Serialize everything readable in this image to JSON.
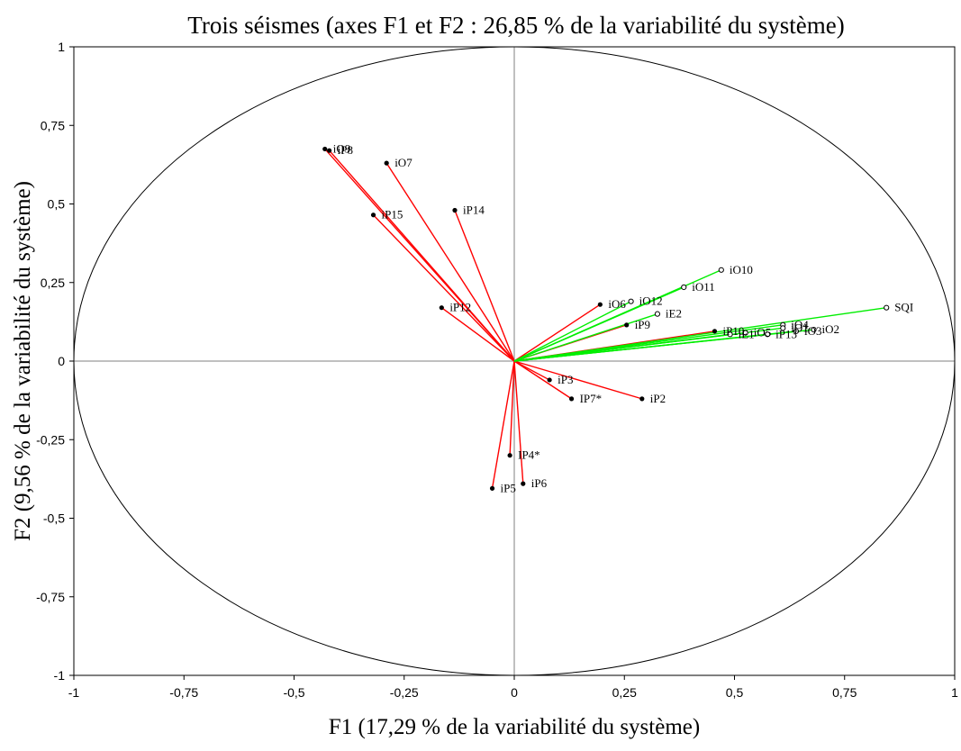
{
  "chart_data": {
    "type": "scatter",
    "title": "Trois séismes (axes F1 et F2 : 26,85 % de la variabilité du système)",
    "xlabel": "F1 (17,29 % de la variabilité du système)",
    "ylabel": "F2 (9,56 % de la variabilité du système)",
    "xlim": [
      -1,
      1
    ],
    "ylim": [
      -1,
      1
    ],
    "xticks": [
      "-1",
      "-0,75",
      "-0,5",
      "-0,25",
      "0",
      "0,25",
      "0,5",
      "0,75",
      "1"
    ],
    "yticks": [
      "-1",
      "-0,75",
      "-0,5",
      "-0,25",
      "0",
      "0,25",
      "0,5",
      "0,75",
      "1"
    ],
    "grid": false,
    "correlation_circle": true,
    "colors": {
      "red_vectors": "#ff0000",
      "green_vectors": "#00ee00",
      "axis": "#808080",
      "circle": "#000000"
    },
    "series": [
      {
        "color": "red",
        "marker": "black-dot",
        "points": [
          {
            "label": "iO9",
            "x": -0.43,
            "y": 0.675
          },
          {
            "label": "iP8",
            "x": -0.42,
            "y": 0.67
          },
          {
            "label": "iO7",
            "x": -0.29,
            "y": 0.63
          },
          {
            "label": "iP15",
            "x": -0.32,
            "y": 0.465
          },
          {
            "label": "iP14",
            "x": -0.135,
            "y": 0.48
          },
          {
            "label": "iP12",
            "x": -0.165,
            "y": 0.17
          },
          {
            "label": "iO6",
            "x": 0.195,
            "y": 0.18
          },
          {
            "label": "iP9",
            "x": 0.255,
            "y": 0.115
          },
          {
            "label": "iP10",
            "x": 0.455,
            "y": 0.095
          },
          {
            "label": "iP3",
            "x": 0.08,
            "y": -0.06
          },
          {
            "label": "IP7*",
            "x": 0.13,
            "y": -0.12
          },
          {
            "label": "iP2",
            "x": 0.29,
            "y": -0.12
          },
          {
            "label": "IP4*",
            "x": -0.01,
            "y": -0.3
          },
          {
            "label": "iP6",
            "x": 0.02,
            "y": -0.39
          },
          {
            "label": "iP5",
            "x": -0.05,
            "y": -0.405
          }
        ]
      },
      {
        "color": "green",
        "marker": "open-circle",
        "points": [
          {
            "label": "iO10",
            "x": 0.47,
            "y": 0.29
          },
          {
            "label": "iO11",
            "x": 0.385,
            "y": 0.235
          },
          {
            "label": "iO12",
            "x": 0.265,
            "y": 0.19
          },
          {
            "label": "iE2",
            "x": 0.325,
            "y": 0.15
          },
          {
            "label": "SQI",
            "x": 0.845,
            "y": 0.17
          },
          {
            "label": "iO4",
            "x": 0.61,
            "y": 0.115
          },
          {
            "label": "iO1",
            "x": 0.61,
            "y": 0.105
          },
          {
            "label": "iO2",
            "x": 0.68,
            "y": 0.1
          },
          {
            "label": "iO3",
            "x": 0.64,
            "y": 0.095
          },
          {
            "label": "iP13",
            "x": 0.575,
            "y": 0.085
          },
          {
            "label": "iO5",
            "x": 0.525,
            "y": 0.09
          },
          {
            "label": "iE1",
            "x": 0.49,
            "y": 0.085
          }
        ]
      }
    ]
  }
}
